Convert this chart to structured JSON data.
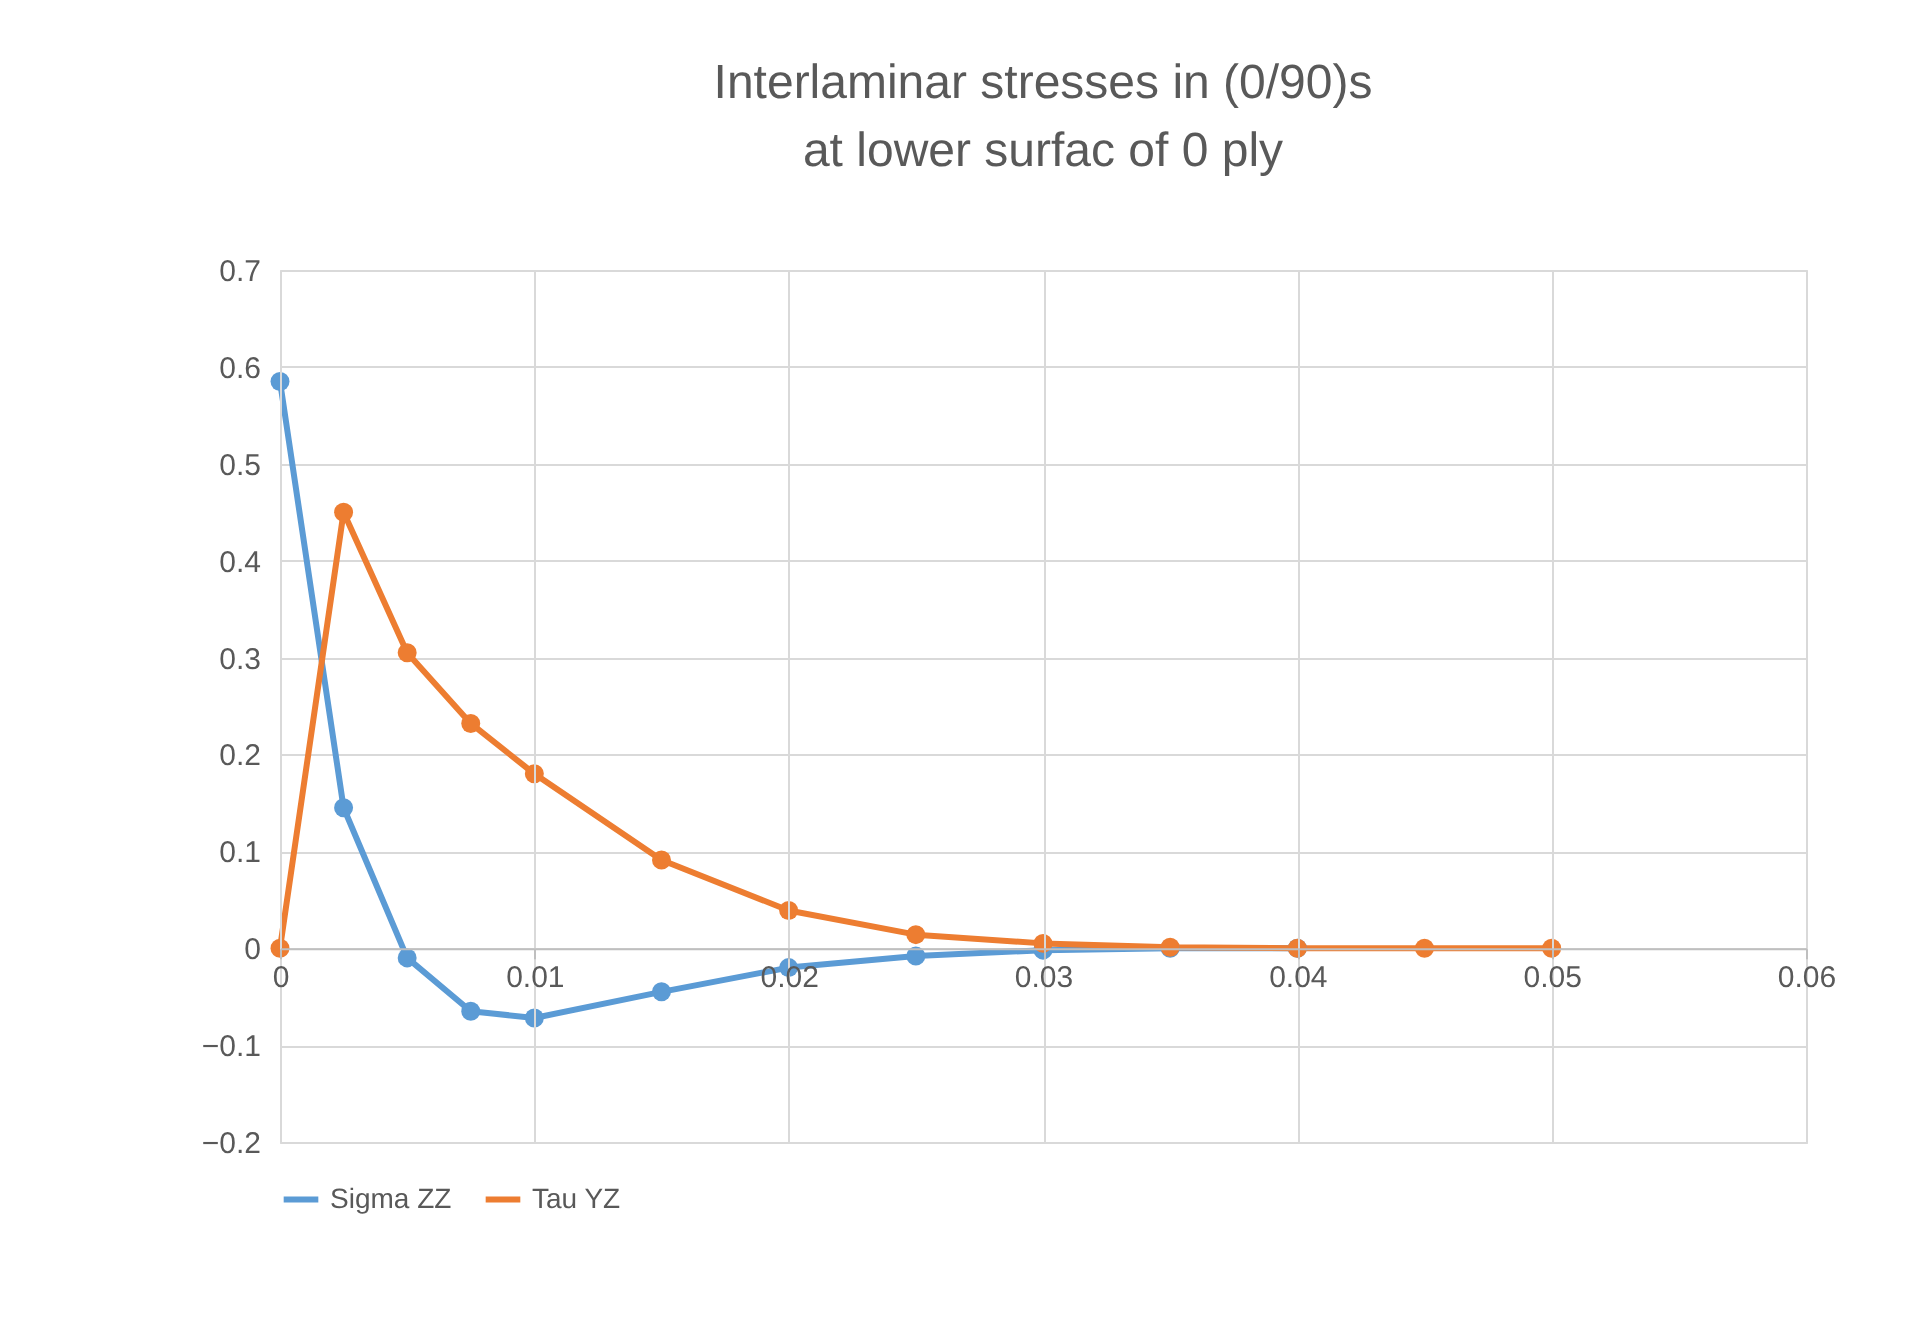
{
  "chart_data": {
    "type": "line",
    "title": "Interlaminar stresses in (0/90)s\nat lower surfac of 0 ply",
    "x": [
      0,
      0.0025,
      0.005,
      0.0075,
      0.01,
      0.015,
      0.02,
      0.025,
      0.03,
      0.035,
      0.04,
      0.045,
      0.05
    ],
    "series": [
      {
        "name": "Sigma ZZ",
        "color": "#5b9bd5",
        "values": [
          0.585,
          0.145,
          -0.01,
          -0.065,
          -0.072,
          -0.045,
          -0.02,
          -0.008,
          -0.002,
          0,
          0,
          null,
          null
        ]
      },
      {
        "name": "Tau YZ",
        "color": "#ed7d31",
        "values": [
          0,
          0.45,
          0.305,
          0.232,
          0.18,
          0.091,
          0.039,
          0.014,
          0.005,
          0.001,
          0,
          0,
          0
        ]
      }
    ],
    "xlim": [
      0,
      0.06
    ],
    "xticks": [
      0,
      0.01,
      0.02,
      0.03,
      0.04,
      0.05,
      0.06
    ],
    "ylim": [
      -0.2,
      0.7
    ],
    "yticks": [
      -0.2,
      -0.1,
      0,
      0.1,
      0.2,
      0.3,
      0.4,
      0.5,
      0.6,
      0.7
    ],
    "grid": true,
    "legend": "bottom",
    "marker": "circle",
    "line_style": "solid"
  }
}
